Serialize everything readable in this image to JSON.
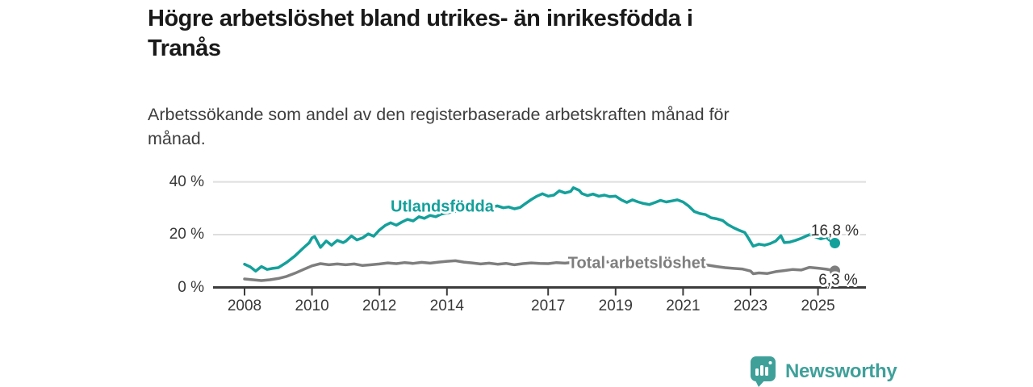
{
  "footer": {
    "brand": "Newsworthy"
  },
  "colors": {
    "accent_teal": "#14a09b",
    "series_gray": "#7e7e7e",
    "logo_teal": "#3fa09a",
    "grid_line": "#dedede",
    "axis_line": "#3c3c3c",
    "title_text": "#191919",
    "subtitle_text": "#3d3d3d"
  },
  "chart_data": {
    "type": "line",
    "title": "Högre arbetslöshet bland utrikes- än inrikesfödda i\nTranås",
    "subtitle": "Arbetssökande som andel av den registerbaserade arbetskraften månad för\nmånad.",
    "xlabel": "",
    "ylabel": "",
    "ylim": [
      0,
      44
    ],
    "x_range_years": [
      2008,
      2025.5
    ],
    "grid": "horizontal",
    "legend_position": "inline-labels",
    "y_ticks": [
      {
        "label": "0 %",
        "value": 0
      },
      {
        "label": "20 %",
        "value": 20
      },
      {
        "label": "40 %",
        "value": 40
      }
    ],
    "x_ticks": [
      {
        "label": "2008",
        "year": 2008
      },
      {
        "label": "2010",
        "year": 2010
      },
      {
        "label": "2012",
        "year": 2012
      },
      {
        "label": "2014",
        "year": 2014
      },
      {
        "label": "2017",
        "year": 2017
      },
      {
        "label": "2019",
        "year": 2019
      },
      {
        "label": "2021",
        "year": 2021
      },
      {
        "label": "2023",
        "year": 2023
      },
      {
        "label": "2025",
        "year": 2025
      }
    ],
    "series": [
      {
        "name": "Utlandsfödda",
        "color": "#14a09b",
        "end_label": "16,8 %",
        "end_value": 16.8,
        "label_anchor": {
          "year": 2013.86,
          "pct": 30.4
        },
        "points": [
          [
            2008.0,
            8.8
          ],
          [
            2008.17,
            7.8
          ],
          [
            2008.33,
            6.2
          ],
          [
            2008.5,
            7.9
          ],
          [
            2008.67,
            6.8
          ],
          [
            2008.83,
            7.2
          ],
          [
            2009.0,
            7.5
          ],
          [
            2009.25,
            9.5
          ],
          [
            2009.5,
            12.0
          ],
          [
            2009.75,
            15.0
          ],
          [
            2009.92,
            17.0
          ],
          [
            2010.0,
            18.8
          ],
          [
            2010.08,
            19.3
          ],
          [
            2010.25,
            15.2
          ],
          [
            2010.42,
            17.6
          ],
          [
            2010.58,
            16.0
          ],
          [
            2010.75,
            17.8
          ],
          [
            2010.92,
            17.0
          ],
          [
            2011.0,
            17.5
          ],
          [
            2011.17,
            19.5
          ],
          [
            2011.33,
            18.0
          ],
          [
            2011.5,
            18.8
          ],
          [
            2011.67,
            20.3
          ],
          [
            2011.83,
            19.4
          ],
          [
            2012.0,
            21.8
          ],
          [
            2012.17,
            23.5
          ],
          [
            2012.33,
            24.5
          ],
          [
            2012.5,
            23.6
          ],
          [
            2012.67,
            24.8
          ],
          [
            2012.83,
            25.8
          ],
          [
            2013.0,
            25.2
          ],
          [
            2013.17,
            26.8
          ],
          [
            2013.33,
            26.2
          ],
          [
            2013.5,
            27.3
          ],
          [
            2013.67,
            26.8
          ],
          [
            2013.83,
            27.8
          ],
          [
            2014.0,
            28.2
          ],
          [
            2014.25,
            28.8
          ],
          [
            2014.5,
            29.3
          ],
          [
            2014.75,
            29.0
          ],
          [
            2015.0,
            29.8
          ],
          [
            2015.25,
            30.3
          ],
          [
            2015.5,
            30.9
          ],
          [
            2015.67,
            30.2
          ],
          [
            2015.83,
            30.5
          ],
          [
            2016.0,
            29.8
          ],
          [
            2016.17,
            30.3
          ],
          [
            2016.33,
            31.8
          ],
          [
            2016.5,
            33.3
          ],
          [
            2016.67,
            34.6
          ],
          [
            2016.83,
            35.5
          ],
          [
            2017.0,
            34.6
          ],
          [
            2017.17,
            35.0
          ],
          [
            2017.33,
            36.6
          ],
          [
            2017.5,
            35.8
          ],
          [
            2017.67,
            36.4
          ],
          [
            2017.75,
            37.8
          ],
          [
            2017.92,
            36.8
          ],
          [
            2018.0,
            35.6
          ],
          [
            2018.17,
            34.8
          ],
          [
            2018.33,
            35.4
          ],
          [
            2018.5,
            34.6
          ],
          [
            2018.67,
            35.0
          ],
          [
            2018.83,
            34.4
          ],
          [
            2019.0,
            34.6
          ],
          [
            2019.17,
            33.2
          ],
          [
            2019.33,
            32.2
          ],
          [
            2019.5,
            33.2
          ],
          [
            2019.67,
            32.4
          ],
          [
            2019.83,
            31.8
          ],
          [
            2020.0,
            31.4
          ],
          [
            2020.17,
            32.2
          ],
          [
            2020.33,
            33.0
          ],
          [
            2020.5,
            32.4
          ],
          [
            2020.67,
            32.8
          ],
          [
            2020.83,
            33.2
          ],
          [
            2021.0,
            32.4
          ],
          [
            2021.17,
            30.8
          ],
          [
            2021.33,
            28.8
          ],
          [
            2021.5,
            28.0
          ],
          [
            2021.67,
            27.6
          ],
          [
            2021.83,
            26.4
          ],
          [
            2022.0,
            26.0
          ],
          [
            2022.17,
            25.4
          ],
          [
            2022.33,
            23.8
          ],
          [
            2022.5,
            22.6
          ],
          [
            2022.67,
            21.6
          ],
          [
            2022.83,
            20.8
          ],
          [
            2022.92,
            19.0
          ],
          [
            2023.08,
            15.6
          ],
          [
            2023.25,
            16.4
          ],
          [
            2023.42,
            16.0
          ],
          [
            2023.58,
            16.6
          ],
          [
            2023.75,
            17.6
          ],
          [
            2023.9,
            19.6
          ],
          [
            2024.0,
            17.0
          ],
          [
            2024.17,
            17.2
          ],
          [
            2024.33,
            17.8
          ],
          [
            2024.5,
            18.6
          ],
          [
            2024.67,
            19.6
          ],
          [
            2024.75,
            20.0
          ],
          [
            2024.92,
            19.2
          ],
          [
            2025.08,
            18.4
          ],
          [
            2025.25,
            19.0
          ],
          [
            2025.33,
            18.0
          ],
          [
            2025.5,
            16.8
          ]
        ]
      },
      {
        "name": "Total arbetslöshet",
        "color": "#7e7e7e",
        "end_label": "6,3 %",
        "end_value": 6.3,
        "label_anchor": {
          "year": 2019.63,
          "pct": 9.0
        },
        "points": [
          [
            2008.0,
            3.2
          ],
          [
            2008.25,
            2.9
          ],
          [
            2008.5,
            2.6
          ],
          [
            2008.75,
            2.9
          ],
          [
            2009.0,
            3.4
          ],
          [
            2009.25,
            4.2
          ],
          [
            2009.5,
            5.4
          ],
          [
            2009.75,
            6.8
          ],
          [
            2010.0,
            8.2
          ],
          [
            2010.25,
            9.0
          ],
          [
            2010.5,
            8.6
          ],
          [
            2010.75,
            8.9
          ],
          [
            2011.0,
            8.6
          ],
          [
            2011.25,
            8.9
          ],
          [
            2011.5,
            8.3
          ],
          [
            2011.75,
            8.6
          ],
          [
            2012.0,
            8.9
          ],
          [
            2012.25,
            9.3
          ],
          [
            2012.5,
            9.0
          ],
          [
            2012.75,
            9.4
          ],
          [
            2013.0,
            9.1
          ],
          [
            2013.25,
            9.5
          ],
          [
            2013.5,
            9.2
          ],
          [
            2013.75,
            9.6
          ],
          [
            2014.0,
            9.9
          ],
          [
            2014.25,
            10.1
          ],
          [
            2014.5,
            9.6
          ],
          [
            2014.75,
            9.3
          ],
          [
            2015.0,
            8.9
          ],
          [
            2015.25,
            9.2
          ],
          [
            2015.5,
            8.8
          ],
          [
            2015.75,
            9.1
          ],
          [
            2016.0,
            8.6
          ],
          [
            2016.25,
            9.0
          ],
          [
            2016.5,
            9.3
          ],
          [
            2016.75,
            9.1
          ],
          [
            2017.0,
            9.0
          ],
          [
            2017.25,
            9.4
          ],
          [
            2017.5,
            9.2
          ],
          [
            2017.75,
            9.5
          ],
          [
            2018.0,
            9.3
          ],
          [
            2018.25,
            9.6
          ],
          [
            2018.5,
            9.4
          ],
          [
            2018.75,
            9.7
          ],
          [
            2019.0,
            9.5
          ],
          [
            2019.25,
            9.2
          ],
          [
            2019.5,
            8.9
          ],
          [
            2019.75,
            9.2
          ],
          [
            2020.0,
            9.4
          ],
          [
            2020.25,
            9.8
          ],
          [
            2020.5,
            9.6
          ],
          [
            2020.75,
            9.9
          ],
          [
            2021.0,
            9.6
          ],
          [
            2021.25,
            9.3
          ],
          [
            2021.5,
            8.9
          ],
          [
            2021.75,
            8.4
          ],
          [
            2022.0,
            7.9
          ],
          [
            2022.25,
            7.5
          ],
          [
            2022.5,
            7.2
          ],
          [
            2022.75,
            7.0
          ],
          [
            2023.0,
            6.2
          ],
          [
            2023.08,
            5.2
          ],
          [
            2023.25,
            5.5
          ],
          [
            2023.5,
            5.3
          ],
          [
            2023.75,
            6.0
          ],
          [
            2024.0,
            6.4
          ],
          [
            2024.25,
            6.8
          ],
          [
            2024.5,
            6.6
          ],
          [
            2024.75,
            7.6
          ],
          [
            2025.0,
            7.3
          ],
          [
            2025.25,
            6.9
          ],
          [
            2025.5,
            6.3
          ]
        ]
      }
    ]
  }
}
